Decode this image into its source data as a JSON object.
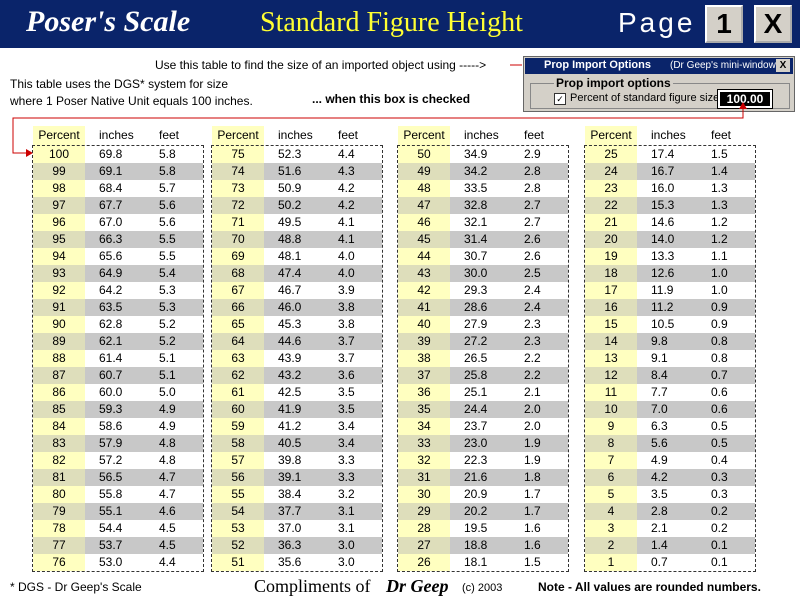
{
  "header": {
    "title": "Poser's Scale",
    "subtitle": "Standard Figure Height",
    "page_label": "Page",
    "page_button": "1",
    "close_button": "X"
  },
  "intro": {
    "line1": "Use this table to find the size of an imported object using ----->",
    "line2": "This table uses the DGS* system for size",
    "line3": "where 1 Poser Native Unit equals 100 inches.",
    "checked_note": "... when this box is checked"
  },
  "mini_window": {
    "title": "Prop Import Options",
    "subtitle": "(Dr Geep's mini-window)",
    "close": "X",
    "group": "Prop import options",
    "checkbox_label": "Percent of standard figure size:",
    "field_value": "100.00"
  },
  "tables": [
    {
      "headers": [
        "Percent",
        "inches",
        "feet"
      ],
      "rows": [
        [
          "100",
          "69.8",
          "5.8"
        ],
        [
          "99",
          "69.1",
          "5.8"
        ],
        [
          "98",
          "68.4",
          "5.7"
        ],
        [
          "97",
          "67.7",
          "5.6"
        ],
        [
          "96",
          "67.0",
          "5.6"
        ],
        [
          "95",
          "66.3",
          "5.5"
        ],
        [
          "94",
          "65.6",
          "5.5"
        ],
        [
          "93",
          "64.9",
          "5.4"
        ],
        [
          "92",
          "64.2",
          "5.3"
        ],
        [
          "91",
          "63.5",
          "5.3"
        ],
        [
          "90",
          "62.8",
          "5.2"
        ],
        [
          "89",
          "62.1",
          "5.2"
        ],
        [
          "88",
          "61.4",
          "5.1"
        ],
        [
          "87",
          "60.7",
          "5.1"
        ],
        [
          "86",
          "60.0",
          "5.0"
        ],
        [
          "85",
          "59.3",
          "4.9"
        ],
        [
          "84",
          "58.6",
          "4.9"
        ],
        [
          "83",
          "57.9",
          "4.8"
        ],
        [
          "82",
          "57.2",
          "4.8"
        ],
        [
          "81",
          "56.5",
          "4.7"
        ],
        [
          "80",
          "55.8",
          "4.7"
        ],
        [
          "79",
          "55.1",
          "4.6"
        ],
        [
          "78",
          "54.4",
          "4.5"
        ],
        [
          "77",
          "53.7",
          "4.5"
        ],
        [
          "76",
          "53.0",
          "4.4"
        ]
      ]
    },
    {
      "headers": [
        "Percent",
        "inches",
        "feet"
      ],
      "rows": [
        [
          "75",
          "52.3",
          "4.4"
        ],
        [
          "74",
          "51.6",
          "4.3"
        ],
        [
          "73",
          "50.9",
          "4.2"
        ],
        [
          "72",
          "50.2",
          "4.2"
        ],
        [
          "71",
          "49.5",
          "4.1"
        ],
        [
          "70",
          "48.8",
          "4.1"
        ],
        [
          "69",
          "48.1",
          "4.0"
        ],
        [
          "68",
          "47.4",
          "4.0"
        ],
        [
          "67",
          "46.7",
          "3.9"
        ],
        [
          "66",
          "46.0",
          "3.8"
        ],
        [
          "65",
          "45.3",
          "3.8"
        ],
        [
          "64",
          "44.6",
          "3.7"
        ],
        [
          "63",
          "43.9",
          "3.7"
        ],
        [
          "62",
          "43.2",
          "3.6"
        ],
        [
          "61",
          "42.5",
          "3.5"
        ],
        [
          "60",
          "41.9",
          "3.5"
        ],
        [
          "59",
          "41.2",
          "3.4"
        ],
        [
          "58",
          "40.5",
          "3.4"
        ],
        [
          "57",
          "39.8",
          "3.3"
        ],
        [
          "56",
          "39.1",
          "3.3"
        ],
        [
          "55",
          "38.4",
          "3.2"
        ],
        [
          "54",
          "37.7",
          "3.1"
        ],
        [
          "53",
          "37.0",
          "3.1"
        ],
        [
          "52",
          "36.3",
          "3.0"
        ],
        [
          "51",
          "35.6",
          "3.0"
        ]
      ]
    },
    {
      "headers": [
        "Percent",
        "inches",
        "feet"
      ],
      "rows": [
        [
          "50",
          "34.9",
          "2.9"
        ],
        [
          "49",
          "34.2",
          "2.8"
        ],
        [
          "48",
          "33.5",
          "2.8"
        ],
        [
          "47",
          "32.8",
          "2.7"
        ],
        [
          "46",
          "32.1",
          "2.7"
        ],
        [
          "45",
          "31.4",
          "2.6"
        ],
        [
          "44",
          "30.7",
          "2.6"
        ],
        [
          "43",
          "30.0",
          "2.5"
        ],
        [
          "42",
          "29.3",
          "2.4"
        ],
        [
          "41",
          "28.6",
          "2.4"
        ],
        [
          "40",
          "27.9",
          "2.3"
        ],
        [
          "39",
          "27.2",
          "2.3"
        ],
        [
          "38",
          "26.5",
          "2.2"
        ],
        [
          "37",
          "25.8",
          "2.2"
        ],
        [
          "36",
          "25.1",
          "2.1"
        ],
        [
          "35",
          "24.4",
          "2.0"
        ],
        [
          "34",
          "23.7",
          "2.0"
        ],
        [
          "33",
          "23.0",
          "1.9"
        ],
        [
          "32",
          "22.3",
          "1.9"
        ],
        [
          "31",
          "21.6",
          "1.8"
        ],
        [
          "30",
          "20.9",
          "1.7"
        ],
        [
          "29",
          "20.2",
          "1.7"
        ],
        [
          "28",
          "19.5",
          "1.6"
        ],
        [
          "27",
          "18.8",
          "1.6"
        ],
        [
          "26",
          "18.1",
          "1.5"
        ]
      ]
    },
    {
      "headers": [
        "Percent",
        "inches",
        "feet"
      ],
      "rows": [
        [
          "25",
          "17.4",
          "1.5"
        ],
        [
          "24",
          "16.7",
          "1.4"
        ],
        [
          "23",
          "16.0",
          "1.3"
        ],
        [
          "22",
          "15.3",
          "1.3"
        ],
        [
          "21",
          "14.6",
          "1.2"
        ],
        [
          "20",
          "14.0",
          "1.2"
        ],
        [
          "19",
          "13.3",
          "1.1"
        ],
        [
          "18",
          "12.6",
          "1.0"
        ],
        [
          "17",
          "11.9",
          "1.0"
        ],
        [
          "16",
          "11.2",
          "0.9"
        ],
        [
          "15",
          "10.5",
          "0.9"
        ],
        [
          "14",
          "9.8",
          "0.8"
        ],
        [
          "13",
          "9.1",
          "0.8"
        ],
        [
          "12",
          "8.4",
          "0.7"
        ],
        [
          "11",
          "7.7",
          "0.6"
        ],
        [
          "10",
          "7.0",
          "0.6"
        ],
        [
          "9",
          "6.3",
          "0.5"
        ],
        [
          "8",
          "5.6",
          "0.5"
        ],
        [
          "7",
          "4.9",
          "0.4"
        ],
        [
          "6",
          "4.2",
          "0.3"
        ],
        [
          "5",
          "3.5",
          "0.3"
        ],
        [
          "4",
          "2.8",
          "0.2"
        ],
        [
          "3",
          "2.1",
          "0.2"
        ],
        [
          "2",
          "1.4",
          "0.1"
        ],
        [
          "1",
          "0.7",
          "0.1"
        ]
      ]
    }
  ],
  "footer": {
    "note": "* DGS - Dr Geep's Scale",
    "compliments": "Compliments of",
    "author": "Dr Geep",
    "copyright": "(c) 2003",
    "rounded_note": "Note - All values are rounded numbers."
  }
}
